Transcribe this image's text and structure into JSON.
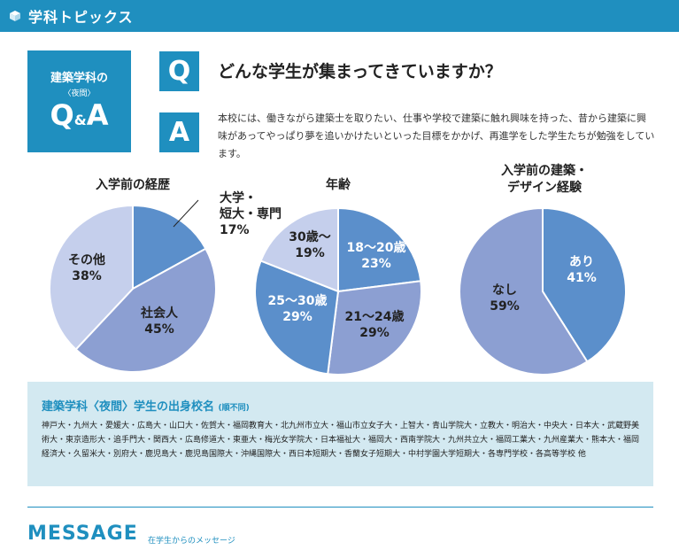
{
  "header": {
    "title": "学科トピックス",
    "icon": "cube-icon"
  },
  "qa_box": {
    "line1": "建築学科の",
    "line2": "〈夜間〉",
    "q": "Q",
    "amp": "&",
    "a": "A"
  },
  "question": {
    "mark": "Q",
    "text": "どんな学生が集まってきていますか？"
  },
  "answer": {
    "mark": "A",
    "text": "本校には、働きながら建築士を取りたい、仕事や学校で建築に触れ興味を持った、昔から建築に興味があってやっぱり夢を追いかけたいといった目標をかかげ、再進学をした学生たちが勉強をしています。"
  },
  "chart_data": [
    {
      "type": "pie",
      "title": "入学前の経歴",
      "slices": [
        {
          "label": "大学・\n短大・専門",
          "value": 17,
          "color": "#5b8fcb"
        },
        {
          "label": "社会人",
          "value": 45,
          "color": "#8c9fd2"
        },
        {
          "label": "その他",
          "value": 38,
          "color": "#c5cfec"
        }
      ]
    },
    {
      "type": "pie",
      "title": "年齢",
      "slices": [
        {
          "label": "18〜20歳",
          "value": 23,
          "color": "#5b8fcb"
        },
        {
          "label": "21〜24歳",
          "value": 29,
          "color": "#8c9fd2"
        },
        {
          "label": "25〜30歳",
          "value": 29,
          "color": "#5b8fcb"
        },
        {
          "label": "30歳〜",
          "value": 19,
          "color": "#c5cfec"
        }
      ]
    },
    {
      "type": "pie",
      "title": "入学前の建築・\nデザイン経験",
      "slices": [
        {
          "label": "あり",
          "value": 41,
          "color": "#5b8fcb"
        },
        {
          "label": "なし",
          "value": 59,
          "color": "#8c9fd2"
        }
      ]
    }
  ],
  "schools": {
    "title": "建築学科〈夜間〉学生の出身校名",
    "title_note": "(順不同)",
    "list": "神戸大・九州大・愛媛大・広島大・山口大・佐賀大・福岡教育大・北九州市立大・福山市立女子大・上智大・青山学院大・立教大・明治大・中央大・日本大・武蔵野美術大・東京造形大・追手門大・関西大・広島修道大・東亜大・梅光女学院大・日本福祉大・福岡大・西南学院大・九州共立大・福岡工業大・九州産業大・熊本大・福岡経済大・久留米大・別府大・鹿児島大・鹿児島国際大・沖縄国際大・西日本短期大・香蘭女子短期大・中村学園大学短期大・各専門学校・各高等学校 他"
  },
  "message": {
    "title": "MESSAGE",
    "subtitle": "在学生からのメッセージ"
  }
}
